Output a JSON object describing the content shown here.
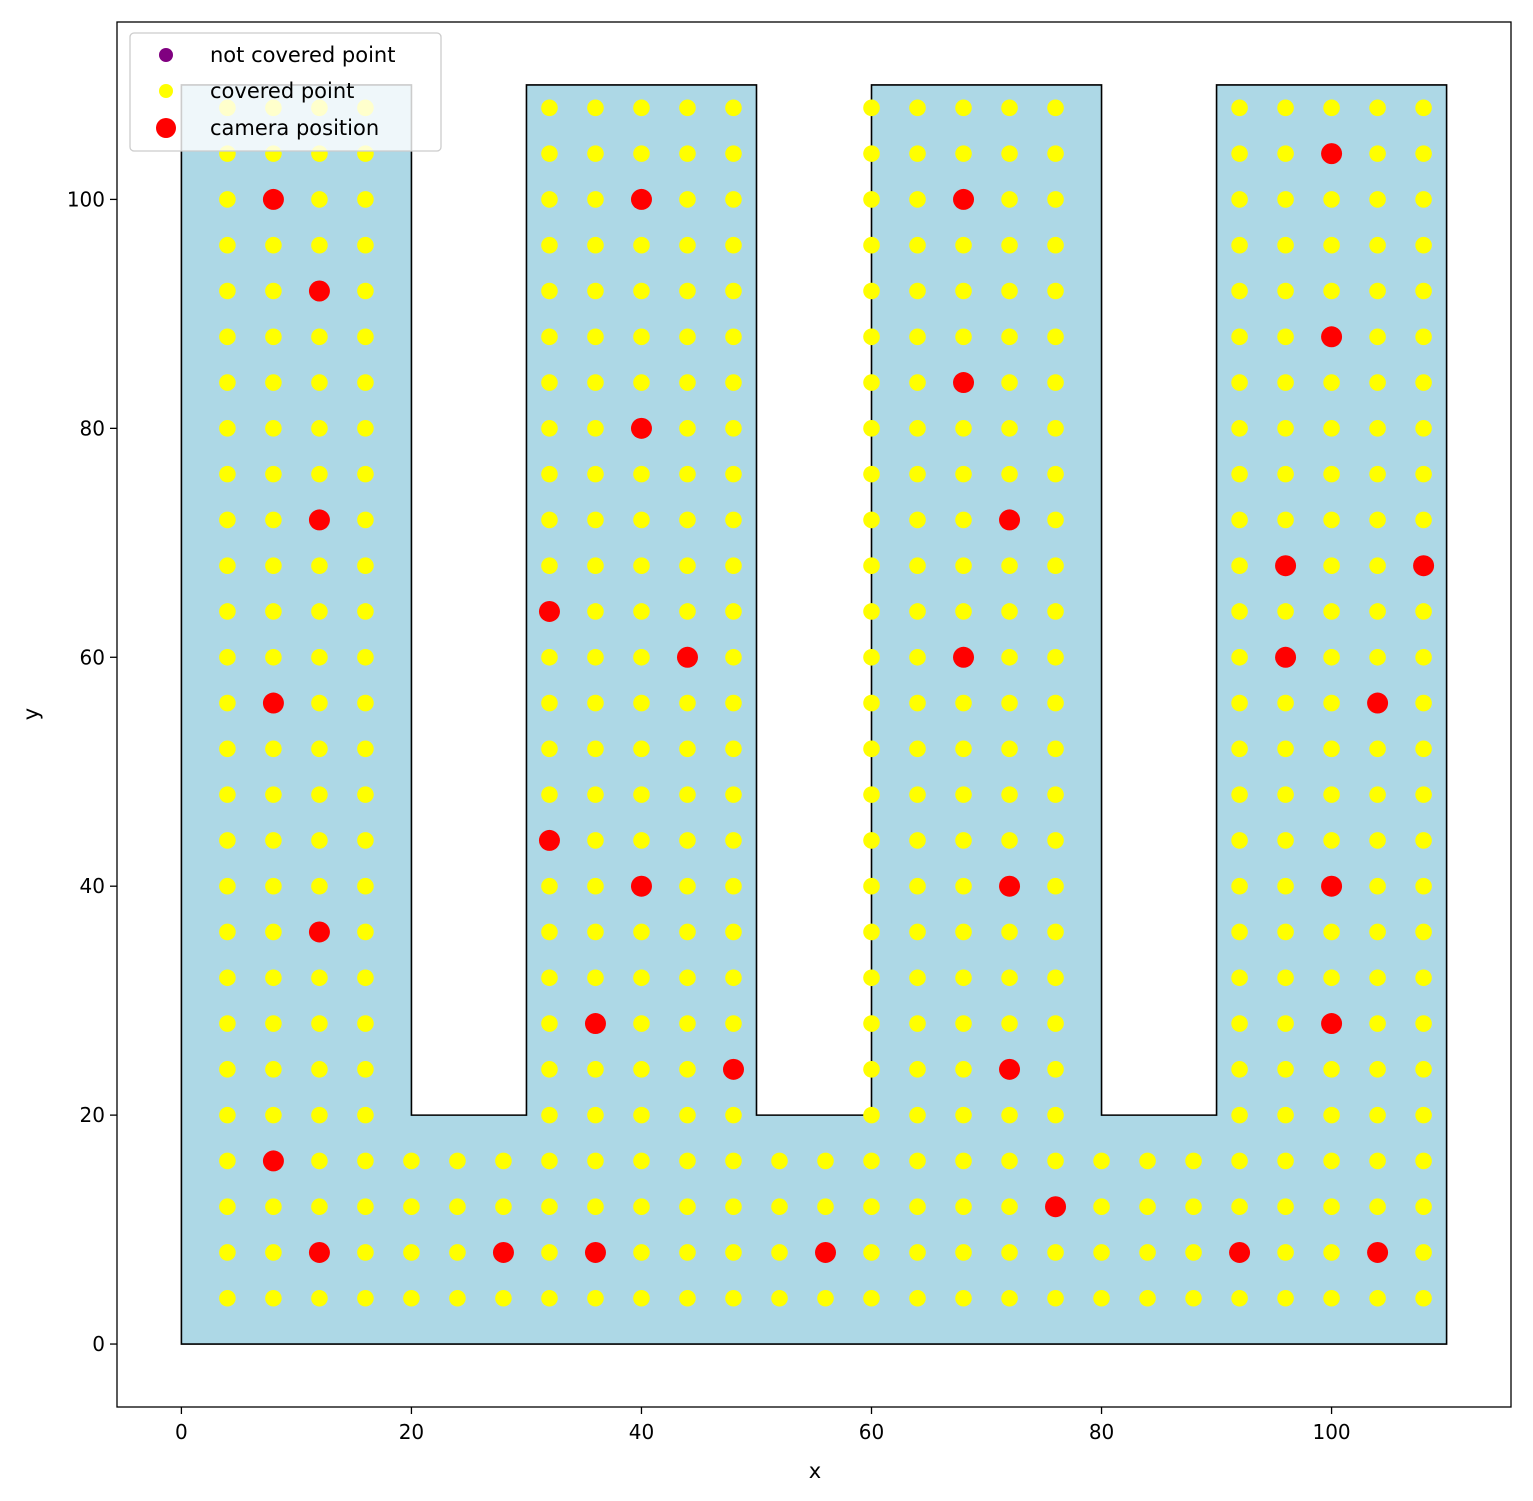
{
  "chart_data": {
    "type": "scatter",
    "title": "",
    "xlabel": "x",
    "ylabel": "y",
    "xlim": [
      -5.6,
      115.6
    ],
    "ylim": [
      -5.5,
      115.5
    ],
    "xticks": [
      0,
      20,
      40,
      60,
      80,
      100
    ],
    "yticks": [
      0,
      20,
      40,
      60,
      80,
      100
    ],
    "grid": false,
    "legend_position": "top-left",
    "region": {
      "fill": "#add8e6",
      "stroke": "#000000",
      "polygon": [
        [
          0,
          0
        ],
        [
          110,
          0
        ],
        [
          110,
          110
        ],
        [
          90,
          110
        ],
        [
          90,
          20
        ],
        [
          80,
          20
        ],
        [
          80,
          110
        ],
        [
          60,
          110
        ],
        [
          60,
          20
        ],
        [
          50,
          20
        ],
        [
          50,
          110
        ],
        [
          30,
          110
        ],
        [
          30,
          20
        ],
        [
          20,
          20
        ],
        [
          20,
          110
        ],
        [
          0,
          110
        ]
      ]
    },
    "grid_points": {
      "x_start": 4,
      "y_start": 4,
      "step": 4,
      "x_end": 108,
      "y_end": 108,
      "top_row_y_max_bottom_strip": 16
    },
    "series": [
      {
        "name": "not covered point",
        "color": "#800080",
        "points": []
      },
      {
        "name": "covered point",
        "color": "#ffff00",
        "points": "all grid points inside region"
      },
      {
        "name": "camera position",
        "color": "#ff0000",
        "points": [
          [
            8,
            100
          ],
          [
            12,
            92
          ],
          [
            12,
            72
          ],
          [
            8,
            56
          ],
          [
            12,
            36
          ],
          [
            8,
            16
          ],
          [
            12,
            8
          ],
          [
            40,
            100
          ],
          [
            40,
            80
          ],
          [
            32,
            64
          ],
          [
            44,
            60
          ],
          [
            32,
            44
          ],
          [
            40,
            40
          ],
          [
            36,
            28
          ],
          [
            48,
            24
          ],
          [
            28,
            8
          ],
          [
            36,
            8
          ],
          [
            56,
            8
          ],
          [
            68,
            100
          ],
          [
            68,
            84
          ],
          [
            72,
            72
          ],
          [
            68,
            60
          ],
          [
            72,
            40
          ],
          [
            72,
            24
          ],
          [
            76,
            12
          ],
          [
            100,
            104
          ],
          [
            100,
            88
          ],
          [
            96,
            68
          ],
          [
            108,
            68
          ],
          [
            96,
            60
          ],
          [
            104,
            56
          ],
          [
            100,
            40
          ],
          [
            100,
            28
          ],
          [
            92,
            8
          ],
          [
            104,
            8
          ]
        ]
      }
    ]
  }
}
